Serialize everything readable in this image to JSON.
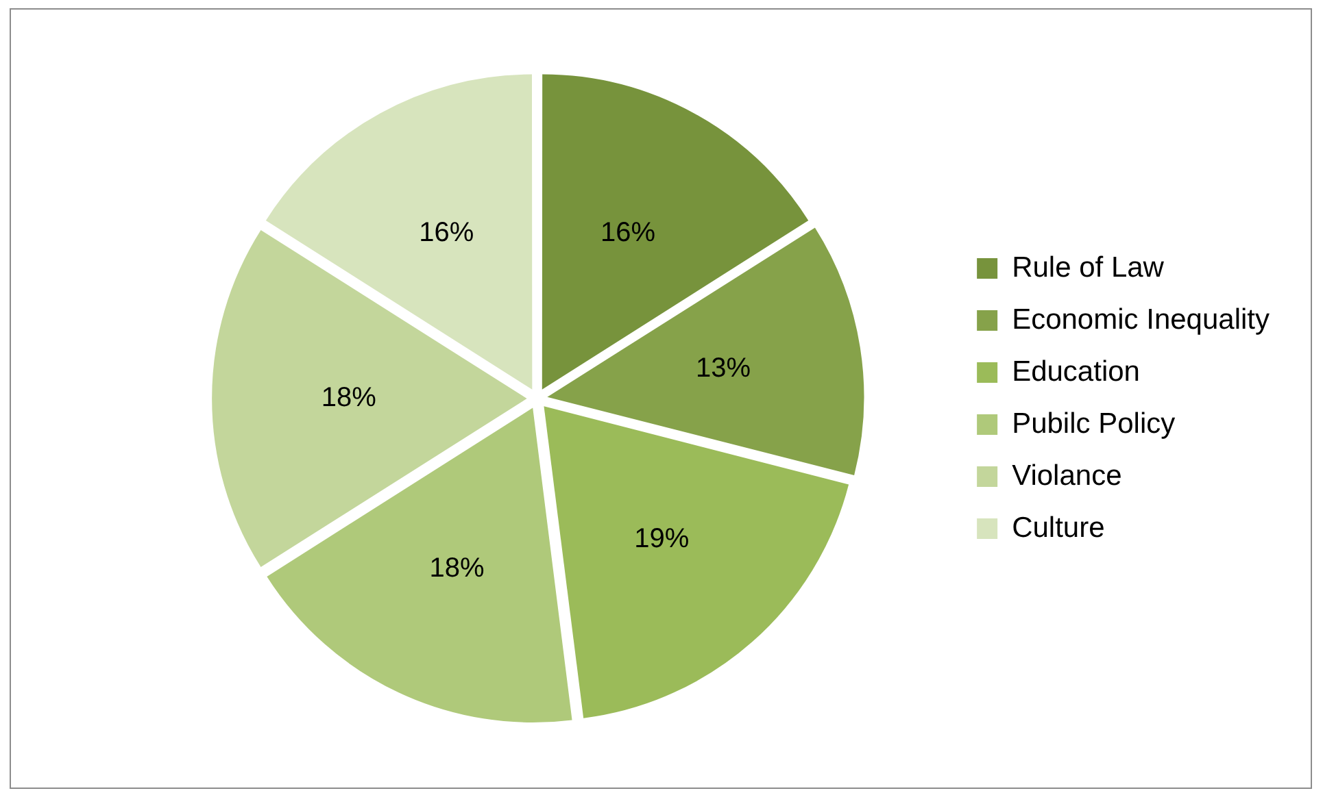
{
  "chart_data": {
    "type": "pie",
    "categories": [
      "Rule of Law",
      "Economic Inequality",
      "Education",
      "Pubilc Policy",
      "Violance",
      "Culture"
    ],
    "values": [
      16,
      13,
      19,
      18,
      18,
      16
    ],
    "value_labels": [
      "16%",
      "13%",
      "19%",
      "18%",
      "18%",
      "16%"
    ],
    "colors": [
      "#77933c",
      "#86a24a",
      "#9bbb59",
      "#afc97a",
      "#c3d69b",
      "#d7e4bd"
    ],
    "legend": "right"
  }
}
